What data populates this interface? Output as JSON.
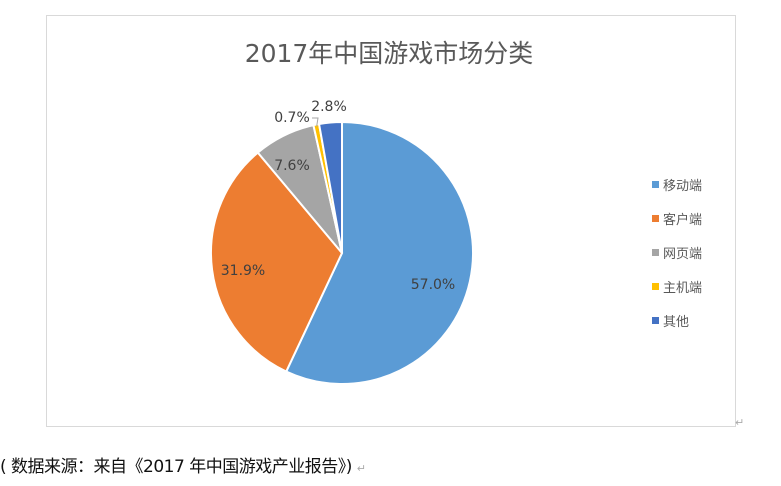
{
  "chart_data": {
    "type": "pie",
    "title": "2017年中国游戏市场分类",
    "categories": [
      "移动端",
      "客户端",
      "网页端",
      "主机端",
      "其他"
    ],
    "values": [
      57.0,
      31.9,
      7.6,
      0.7,
      2.8
    ],
    "data_labels": [
      "57.0%",
      "31.9%",
      "7.6%",
      "0.7%",
      "2.8%"
    ],
    "colors": [
      "#5b9bd5",
      "#ed7d31",
      "#a5a5a5",
      "#ffc000",
      "#4472c4"
    ],
    "start_angle": "top, clockwise",
    "legend_position": "right"
  },
  "caption": "( 数据来源：来自《2017 年中国游戏产业报告》)",
  "paragraph_mark": "↵"
}
